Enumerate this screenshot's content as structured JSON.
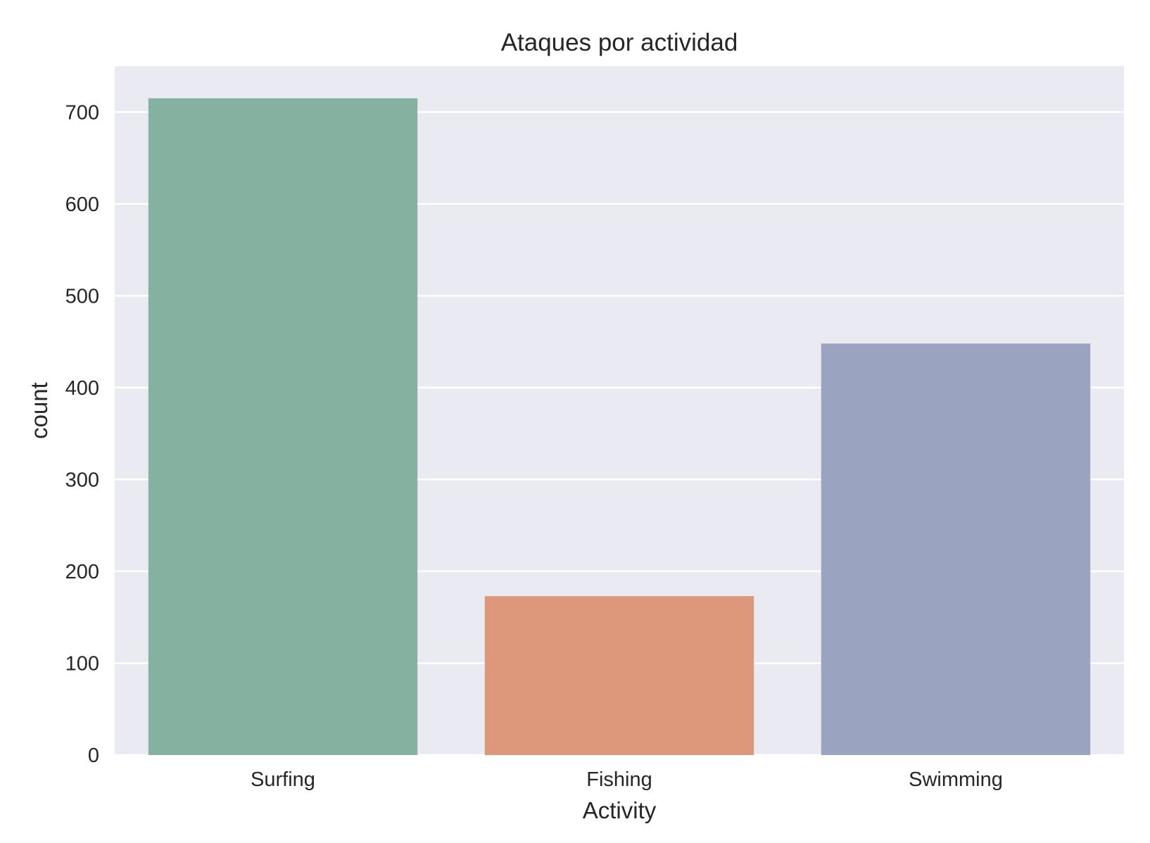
{
  "chart_data": {
    "type": "bar",
    "title": "Ataques por actividad",
    "xlabel": "Activity",
    "ylabel": "count",
    "categories": [
      "Surfing",
      "Fishing",
      "Swimming"
    ],
    "values": [
      715,
      173,
      448
    ],
    "colors": [
      "#85b2a0",
      "#dd987c",
      "#9aa3bf"
    ],
    "ylim": [
      0,
      750
    ],
    "yticks": [
      0,
      100,
      200,
      300,
      400,
      500,
      600,
      700
    ],
    "grid": true,
    "legend": "none",
    "background": "#eaeaf2",
    "grid_color": "#ffffff"
  }
}
